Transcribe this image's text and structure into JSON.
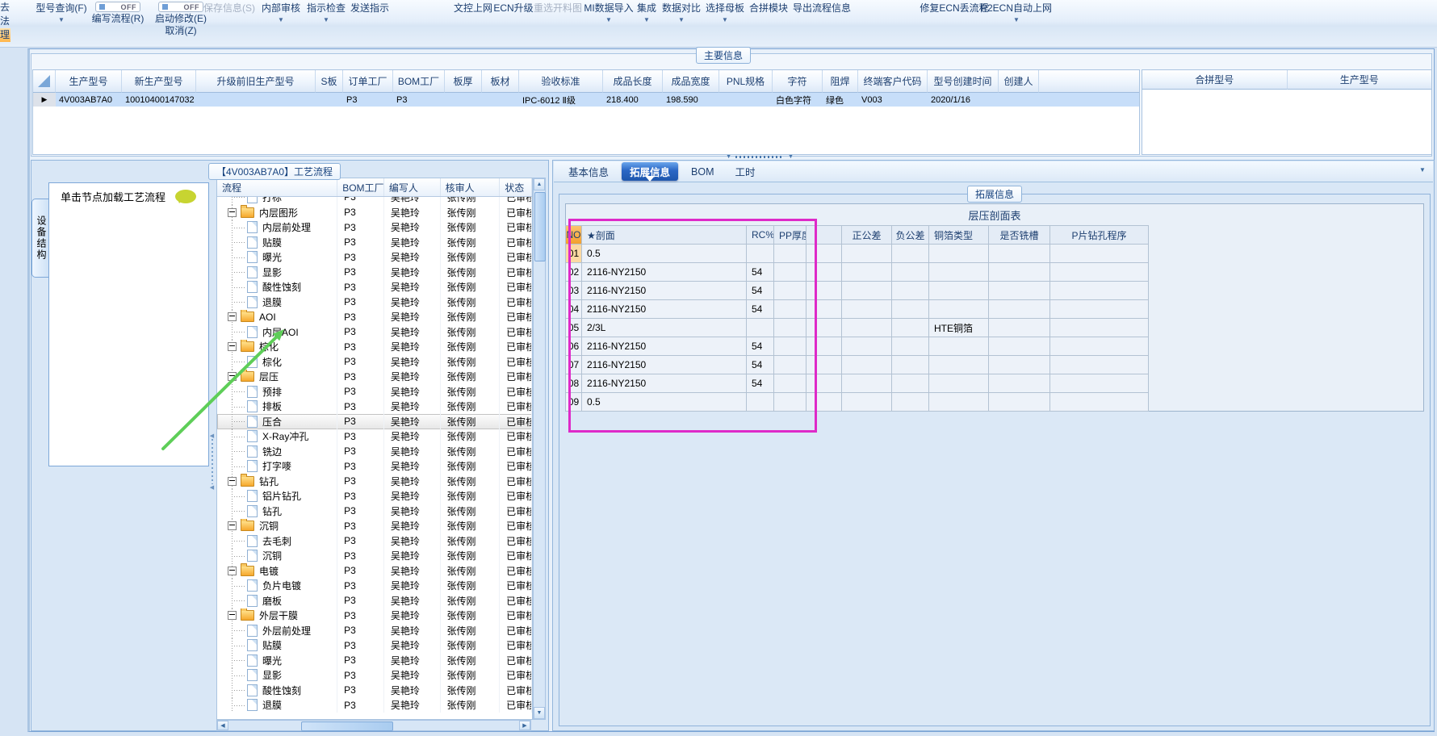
{
  "left_menu": {
    "items": [
      {
        "label": "去",
        "active": false
      },
      {
        "label": "法",
        "active": false
      },
      {
        "label": "理",
        "active": true
      }
    ]
  },
  "ribbon": {
    "buttons": [
      {
        "label": "型号查询(F)",
        "arrow": true
      },
      {
        "label": "编写流程(R)",
        "toggle": "OFF"
      },
      {
        "label": "启动修改(E)",
        "toggle": "OFF",
        "sub": "取消(Z)"
      },
      {
        "label": "保存信息(S)",
        "disabled": true
      },
      {
        "label": "内部审核",
        "arrow": true
      },
      {
        "label": "指示检查",
        "arrow": true
      },
      {
        "label": "发送指示"
      },
      {
        "label": "文控上网"
      },
      {
        "label": "ECN升级"
      },
      {
        "label": "重选开料图",
        "disabled": true
      },
      {
        "label": "MI数据导入",
        "arrow": true
      },
      {
        "label": "集成",
        "arrow": true
      },
      {
        "label": "数据对比",
        "arrow": true
      },
      {
        "label": "选择母板",
        "arrow": true
      },
      {
        "label": "合拼模块"
      },
      {
        "label": "导出流程信息"
      },
      {
        "label": "修复ECN丢流程"
      },
      {
        "label": "P2ECN自动上网",
        "arrow": true
      }
    ]
  },
  "main_info": {
    "caption": "主要信息",
    "columns": [
      "生产型号",
      "新生产型号",
      "升级前旧生产型号",
      "S板",
      "订单工厂",
      "BOM工厂",
      "板厚",
      "板材",
      "验收标准",
      "成品长度",
      "成品宽度",
      "PNL规格",
      "字符",
      "阻焊",
      "终端客户代码",
      "型号创建时间",
      "创建人"
    ],
    "row": {
      "marker": "▶",
      "values": [
        "4V003AB7A0",
        "10010400147032",
        "",
        "",
        "P3",
        "P3",
        "",
        "",
        "IPC-6012 Ⅱ级",
        "218.400",
        "198.590",
        "",
        "白色字符",
        "绿色",
        "V003",
        "2020/1/16",
        ""
      ]
    }
  },
  "merge_table": {
    "columns": [
      "合拼型号",
      "生产型号"
    ]
  },
  "process_panel": {
    "caption": "【4V003AB7A0】工艺流程",
    "side_tab": "设备结构",
    "hint": "单击节点加载工艺流程",
    "columns": [
      "流程",
      "BOM工厂",
      "编写人",
      "核审人",
      "状态"
    ],
    "defaults": {
      "bom_factory": "P3",
      "writer": "吴艳玲",
      "auditor": "张传刚",
      "status": "已审核"
    },
    "rows": [
      {
        "label": "打标",
        "type": "leaf",
        "clipped": true
      },
      {
        "label": "内层图形",
        "type": "folder"
      },
      {
        "label": "内层前处理",
        "type": "leaf"
      },
      {
        "label": "贴膜",
        "type": "leaf"
      },
      {
        "label": "曝光",
        "type": "leaf"
      },
      {
        "label": "显影",
        "type": "leaf"
      },
      {
        "label": "酸性蚀刻",
        "type": "leaf"
      },
      {
        "label": "退膜",
        "type": "leaf"
      },
      {
        "label": "AOI",
        "type": "folder"
      },
      {
        "label": "内层AOI",
        "type": "leaf"
      },
      {
        "label": "棕化",
        "type": "folder"
      },
      {
        "label": "棕化",
        "type": "leaf"
      },
      {
        "label": "层压",
        "type": "folder"
      },
      {
        "label": "预排",
        "type": "leaf"
      },
      {
        "label": "排板",
        "type": "leaf"
      },
      {
        "label": "压合",
        "type": "leaf",
        "selected": true
      },
      {
        "label": "X-Ray冲孔",
        "type": "leaf"
      },
      {
        "label": "铣边",
        "type": "leaf"
      },
      {
        "label": "打字嘜",
        "type": "leaf"
      },
      {
        "label": "钻孔",
        "type": "folder"
      },
      {
        "label": "铝片钻孔",
        "type": "leaf"
      },
      {
        "label": "钻孔",
        "type": "leaf"
      },
      {
        "label": "沉铜",
        "type": "folder"
      },
      {
        "label": "去毛刺",
        "type": "leaf"
      },
      {
        "label": "沉铜",
        "type": "leaf"
      },
      {
        "label": "电镀",
        "type": "folder"
      },
      {
        "label": "负片电镀",
        "type": "leaf"
      },
      {
        "label": "磨板",
        "type": "leaf"
      },
      {
        "label": "外层干膜",
        "type": "folder"
      },
      {
        "label": "外层前处理",
        "type": "leaf"
      },
      {
        "label": "贴膜",
        "type": "leaf"
      },
      {
        "label": "曝光",
        "type": "leaf"
      },
      {
        "label": "显影",
        "type": "leaf"
      },
      {
        "label": "酸性蚀刻",
        "type": "leaf"
      },
      {
        "label": "退膜",
        "type": "leaf"
      }
    ]
  },
  "detail_panel": {
    "tabs": [
      {
        "label": "基本信息",
        "active": false
      },
      {
        "label": "拓展信息",
        "active": true
      },
      {
        "label": "BOM",
        "active": false
      },
      {
        "label": "工时",
        "active": false
      }
    ],
    "caption": "拓展信息",
    "section_table": {
      "title": "层压剖面表",
      "columns": [
        "NO",
        "★剖面",
        "RC%",
        "PP厚度",
        "",
        "正公差",
        "负公差",
        "铜箔类型",
        "是否铣槽",
        "P片钻孔程序"
      ],
      "rows": [
        [
          "01",
          "0.5",
          "",
          "",
          "",
          "",
          "",
          "",
          "",
          ""
        ],
        [
          "02",
          "2116-NY2150",
          "54",
          "",
          "",
          "",
          "",
          "",
          "",
          ""
        ],
        [
          "03",
          "2116-NY2150",
          "54",
          "",
          "",
          "",
          "",
          "",
          "",
          ""
        ],
        [
          "04",
          "2116-NY2150",
          "54",
          "",
          "",
          "",
          "",
          "",
          "",
          ""
        ],
        [
          "05",
          "2/3L",
          "",
          "",
          "",
          "",
          "",
          "HTE铜箔",
          "",
          ""
        ],
        [
          "06",
          "2116-NY2150",
          "54",
          "",
          "",
          "",
          "",
          "",
          "",
          ""
        ],
        [
          "07",
          "2116-NY2150",
          "54",
          "",
          "",
          "",
          "",
          "",
          "",
          ""
        ],
        [
          "08",
          "2116-NY2150",
          "54",
          "",
          "",
          "",
          "",
          "",
          "",
          ""
        ],
        [
          "09",
          "0.5",
          "",
          "",
          "",
          "",
          "",
          "",
          "",
          ""
        ]
      ]
    }
  },
  "annotations": {
    "highlight_box_color": "#de2ac8",
    "arrow_color": "#5ece58"
  }
}
